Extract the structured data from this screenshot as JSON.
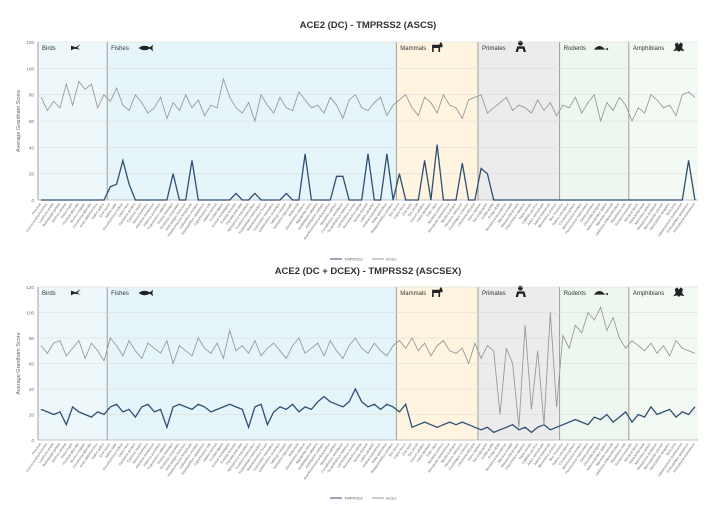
{
  "chart_data": [
    {
      "type": "line",
      "title": "ACE2 (DC) - TMPRSS2 (ASCS)",
      "xlabel": "",
      "ylabel": "Average Grantham Score",
      "ylim": [
        0,
        120
      ],
      "yticks": [
        0,
        20,
        40,
        60,
        80,
        100,
        120
      ],
      "grid": true,
      "legend": "bottom-center",
      "groups": [
        {
          "label": "Birds",
          "icon": "bird-icon",
          "start": 0,
          "end": 11,
          "color": "#eef8fb"
        },
        {
          "label": "Fishes",
          "icon": "fish-icon",
          "start": 11,
          "end": 57,
          "color": "#e5f5fa"
        },
        {
          "label": "Mammals",
          "icon": "goat-icon",
          "start": 57,
          "end": 70,
          "color": "#fff4e0"
        },
        {
          "label": "Primates",
          "icon": "monkey-icon",
          "start": 70,
          "end": 83,
          "color": "#ececec"
        },
        {
          "label": "Rodents",
          "icon": "turtle-icon",
          "start": 83,
          "end": 94,
          "color": "#eef7ef"
        },
        {
          "label": "Amphibians",
          "icon": "frog-icon",
          "start": 94,
          "end": 105,
          "color": "#f3f9f3"
        }
      ],
      "series": [
        {
          "name": "TMPRSS2",
          "color": "#2f4f73",
          "values": [
            0,
            0,
            0,
            0,
            0,
            0,
            0,
            0,
            0,
            0,
            0,
            10,
            12,
            30,
            12,
            0,
            0,
            0,
            0,
            0,
            0,
            20,
            0,
            0,
            30,
            0,
            0,
            0,
            0,
            0,
            0,
            5,
            0,
            0,
            5,
            0,
            0,
            0,
            0,
            5,
            0,
            0,
            35,
            0,
            0,
            0,
            0,
            18,
            18,
            0,
            0,
            0,
            35,
            0,
            0,
            35,
            0,
            20,
            0,
            0,
            0,
            30,
            0,
            42,
            0,
            0,
            0,
            28,
            0,
            0,
            24,
            20,
            0,
            0,
            0,
            0,
            0,
            0,
            0,
            0,
            0,
            0,
            0,
            0,
            0,
            0,
            0,
            0,
            0,
            0,
            0,
            0,
            0,
            0,
            0,
            0,
            0,
            0,
            0,
            0,
            0,
            0,
            0,
            30,
            0
          ]
        },
        {
          "name": "ACE2",
          "color": "#9a9a9a",
          "values": [
            78,
            68,
            75,
            70,
            88,
            72,
            90,
            84,
            88,
            70,
            80,
            75,
            85,
            72,
            68,
            80,
            74,
            66,
            70,
            78,
            62,
            74,
            68,
            80,
            70,
            76,
            64,
            72,
            70,
            92,
            78,
            70,
            66,
            74,
            60,
            80,
            72,
            66,
            78,
            70,
            68,
            82,
            76,
            70,
            72,
            66,
            78,
            72,
            62,
            76,
            80,
            70,
            68,
            74,
            78,
            64,
            72,
            76,
            80,
            70,
            64,
            78,
            74,
            66,
            80,
            72,
            70,
            62,
            76,
            78,
            80,
            66,
            70,
            74,
            78,
            68,
            72,
            70,
            66,
            76,
            68,
            74,
            64,
            72,
            70,
            78,
            66,
            74,
            80,
            60,
            74,
            68,
            78,
            72,
            60,
            70,
            66,
            80,
            76,
            70,
            72,
            64,
            80,
            82,
            78
          ]
        }
      ],
      "extra_series_variation": {
        "note": "",
        "primate_dips": [
          72,
          73,
          75,
          76,
          78,
          80,
          81
        ]
      }
    },
    {
      "type": "line",
      "title": "ACE2 (DC + DCEX) - TMPRSS2 (ASCSEX)",
      "xlabel": "",
      "ylabel": "Average Grantham Score",
      "ylim": [
        0,
        120
      ],
      "yticks": [
        0,
        20,
        40,
        60,
        80,
        100,
        120
      ],
      "grid": true,
      "legend": "bottom-center",
      "groups": [
        {
          "label": "Birds",
          "icon": "bird-icon",
          "start": 0,
          "end": 11,
          "color": "#eef8fb"
        },
        {
          "label": "Fishes",
          "icon": "fish-icon",
          "start": 11,
          "end": 57,
          "color": "#e5f5fa"
        },
        {
          "label": "Mammals",
          "icon": "goat-icon",
          "start": 57,
          "end": 70,
          "color": "#fff4e0"
        },
        {
          "label": "Primates",
          "icon": "monkey-icon",
          "start": 70,
          "end": 83,
          "color": "#ececec"
        },
        {
          "label": "Rodents",
          "icon": "turtle-icon",
          "start": 83,
          "end": 94,
          "color": "#eef7ef"
        },
        {
          "label": "Amphibians",
          "icon": "frog-icon",
          "start": 94,
          "end": 105,
          "color": "#f3f9f3"
        }
      ],
      "series": [
        {
          "name": "TMPRSS2",
          "color": "#2f4f73",
          "values": [
            24,
            22,
            20,
            22,
            12,
            26,
            22,
            20,
            18,
            22,
            20,
            26,
            28,
            22,
            24,
            18,
            26,
            28,
            22,
            24,
            10,
            26,
            28,
            26,
            24,
            28,
            26,
            22,
            24,
            26,
            28,
            26,
            24,
            10,
            26,
            28,
            12,
            22,
            26,
            24,
            28,
            22,
            26,
            24,
            30,
            34,
            30,
            28,
            26,
            30,
            40,
            30,
            26,
            28,
            24,
            28,
            26,
            22,
            28,
            10,
            12,
            14,
            12,
            10,
            12,
            14,
            12,
            14,
            12,
            10,
            8,
            10,
            6,
            8,
            10,
            12,
            8,
            10,
            6,
            10,
            12,
            8,
            10,
            12,
            14,
            16,
            14,
            12,
            18,
            16,
            20,
            14,
            18,
            22,
            14,
            20,
            18,
            26,
            20,
            22,
            24,
            18,
            22,
            20,
            26
          ]
        },
        {
          "name": "ACE2",
          "color": "#9a9a9a",
          "values": [
            74,
            68,
            76,
            78,
            66,
            72,
            78,
            64,
            76,
            70,
            62,
            80,
            74,
            66,
            78,
            70,
            64,
            76,
            72,
            68,
            78,
            60,
            74,
            70,
            66,
            80,
            72,
            68,
            76,
            64,
            86,
            70,
            74,
            68,
            78,
            66,
            72,
            76,
            70,
            64,
            74,
            80,
            68,
            72,
            76,
            66,
            78,
            70,
            64,
            74,
            80,
            72,
            68,
            76,
            70,
            66,
            74,
            78,
            72,
            80,
            70,
            76,
            66,
            74,
            78,
            70,
            68,
            72,
            60,
            76,
            64,
            74,
            70,
            20,
            72,
            60,
            10,
            90,
            24,
            70,
            12,
            100,
            26,
            82,
            72,
            90,
            84,
            100,
            94,
            104,
            86,
            96,
            80,
            72,
            78,
            74,
            70,
            76,
            68,
            74,
            66,
            78,
            72,
            70,
            68
          ]
        }
      ]
    }
  ],
  "legends": [
    {
      "labels": [
        "TMPRSS2",
        "ACE2"
      ]
    },
    {
      "labels": [
        "TMPRSS2",
        "ACE2"
      ]
    }
  ],
  "xcategories": [
    "Pica pica",
    "Corvus brachyrhynchos",
    "Lonchura striata",
    "Taeniopygia guttata",
    "Serinus canaria",
    "Parus major",
    "Ficedula albicollis",
    "Sturnus vulgaris",
    "Zonotrichia albicollis",
    "Anas platyrhynchos",
    "Gallus gallus",
    "Esox lucius",
    "Salmo salar",
    "Oncorhynchus mykiss",
    "Danio rerio",
    "Carassius auratus",
    "Cyprinus carpio",
    "Sinocyclocheilus",
    "Astyanax mexicanus",
    "Ictalurus punctatus",
    "Pygocentrus nattereri",
    "Clupea harengus",
    "Denticeps clupeoides",
    "Scleropages formosus",
    "Paramormyrops kingsleyae",
    "Lepisosteus oculatus",
    "Erpetoichthys calabaricus",
    "Callorhinchus milii",
    "Gadus morhua",
    "Oryzias latipes",
    "Oryzias melastigma",
    "Poecilia formosa",
    "Poecilia reticulata",
    "Xiphophorus maculatus",
    "Fundulus heteroclitus",
    "Kryptolebias marmoratus",
    "Nothobranchius furzeri",
    "Cyprinodon variegatus",
    "Gasterosteus aculeatus",
    "Takifugu rubripes",
    "Tetraodon nigroviridis",
    "Mola mola",
    "Oreochromis niloticus",
    "Maylandia zebra",
    "Astatotilapia calliptera",
    "Amphiprion ocellaris",
    "Acanthochromis polyacanthus",
    "Stegastes partitus",
    "Cynoglossus semilaevis",
    "Scophthalmus maximus",
    "Larimichthys crocea",
    "Dicentrarchus labrax",
    "Seriola dumerili",
    "Lates calcarifer",
    "Anabas testudineus",
    "Betta splendens",
    "Mastacembelus armatus",
    "Bos taurus",
    "Capra hircus",
    "Ovis aries",
    "Sus scrofa",
    "Equus caballus",
    "Canis familiaris",
    "Felis catus",
    "Mustela putorius",
    "Ailuropoda melanoleuca",
    "Myotis lucifugus",
    "Pteropus vampyrus",
    "Oryctolagus cuniculus",
    "Loxodonta africana",
    "Homo sapiens",
    "Pan troglodytes",
    "Gorilla gorilla",
    "Pongo abelii",
    "Nomascus leucogenys",
    "Macaca mulatta",
    "Macaca fascicularis",
    "Chlorocebus sabaeus",
    "Papio anubis",
    "Callithrix jacchus",
    "Aotus nancymaae",
    "Saimiri boliviensis",
    "Microcebus murinus",
    "Mus musculus",
    "Rattus norvegicus",
    "Cricetulus griseus",
    "Mesocricetus auratus",
    "Peromyscus maniculatus",
    "Cavia porcellus",
    "Chinchilla lanigera",
    "Heterocephalus glaber",
    "Marmota marmota",
    "Ictidomys tridecemlineatus",
    "Dipodomys ordii",
    "Xenopus tropicalis",
    "Xenopus laevis",
    "Rana temporaria",
    "Nanorana parkeri",
    "Rhinatrema bivittatum",
    "Microcaecilia unicolor",
    "Geotrypetes seraphini",
    "Bufo bufo",
    "Leptobrachium leishanense",
    "Pyxicephalus adspersus",
    "Ambystoma mexicanum"
  ]
}
